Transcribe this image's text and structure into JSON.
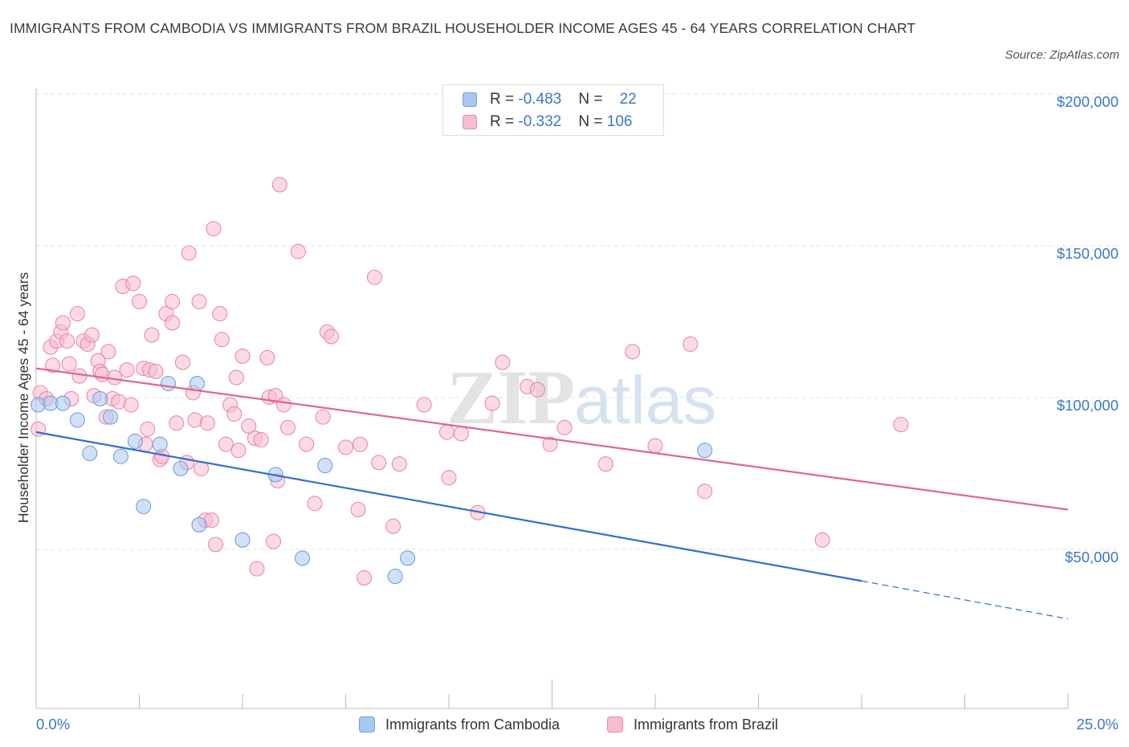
{
  "title": "IMMIGRANTS FROM CAMBODIA VS IMMIGRANTS FROM BRAZIL HOUSEHOLDER INCOME AGES 45 - 64 YEARS CORRELATION CHART",
  "source": "Source: ZipAtlas.com",
  "watermark": {
    "zip": "ZIP",
    "atlas": "atlas"
  },
  "legend": {
    "rows": [
      {
        "r_label": "R = ",
        "r_value": "-0.483",
        "n_label": "N = ",
        "n_value": "22",
        "color": "#a9c8f0",
        "border": "#6fa0dd"
      },
      {
        "r_label": "R = ",
        "r_value": "-0.332",
        "n_label": "N = ",
        "n_value": "106",
        "color": "#f7bcd0",
        "border": "#e98aa9"
      }
    ]
  },
  "bottom_legend": {
    "items": [
      {
        "label": "Immigrants from Cambodia",
        "color": "#a9c8f0",
        "border": "#6fa0dd"
      },
      {
        "label": "Immigrants from Brazil",
        "color": "#f7bcd0",
        "border": "#e98aa9"
      }
    ]
  },
  "chart_data": {
    "type": "scatter",
    "title": "IMMIGRANTS FROM CAMBODIA VS IMMIGRANTS FROM BRAZIL HOUSEHOLDER INCOME AGES 45 - 64 YEARS CORRELATION CHART",
    "xlabel": "",
    "ylabel": "Householder Income Ages 45 - 64 years",
    "xlim": [
      0,
      25
    ],
    "ylim": [
      0,
      200000
    ],
    "x_tick_labels": [
      "0.0%",
      "25.0%"
    ],
    "y_ticks": [
      50000,
      100000,
      150000,
      200000
    ],
    "y_tick_labels": [
      "$50,000",
      "$100,000",
      "$150,000",
      "$200,000"
    ],
    "grid": true,
    "legend_position": "top-center",
    "series": [
      {
        "name": "Immigrants from Cambodia",
        "color": "#a9c8f0",
        "edge_color": "#6fa0dd",
        "line_color": "#2f6fd1",
        "trend": {
          "x0": 0,
          "y0": 91000,
          "x1": 20,
          "y1": 42000,
          "dash_to_x": 25,
          "dash_to_y": 29500
        },
        "points": [
          [
            0.05,
            100000
          ],
          [
            0.35,
            100500
          ],
          [
            0.65,
            100500
          ],
          [
            1.0,
            95000
          ],
          [
            1.3,
            84000
          ],
          [
            1.55,
            102000
          ],
          [
            1.8,
            96000
          ],
          [
            2.05,
            83000
          ],
          [
            2.4,
            88000
          ],
          [
            2.6,
            66500
          ],
          [
            3.0,
            87000
          ],
          [
            3.2,
            107000
          ],
          [
            3.5,
            79000
          ],
          [
            3.9,
            107000
          ],
          [
            3.95,
            60500
          ],
          [
            5.0,
            55500
          ],
          [
            5.8,
            77000
          ],
          [
            6.45,
            49500
          ],
          [
            7.0,
            80000
          ],
          [
            8.7,
            43500
          ],
          [
            9.0,
            49500
          ],
          [
            16.2,
            85000
          ]
        ]
      },
      {
        "name": "Immigrants from Brazil",
        "color": "#f7bcd0",
        "edge_color": "#e98aa9",
        "line_color": "#e0668e",
        "trend": {
          "x0": 0,
          "y0": 112000,
          "x1": 25,
          "y1": 65500
        },
        "points": [
          [
            0.05,
            92000
          ],
          [
            0.1,
            104000
          ],
          [
            0.25,
            102000
          ],
          [
            0.35,
            119000
          ],
          [
            0.4,
            113000
          ],
          [
            0.5,
            121000
          ],
          [
            0.6,
            124000
          ],
          [
            0.65,
            127000
          ],
          [
            0.75,
            121000
          ],
          [
            0.8,
            113500
          ],
          [
            0.85,
            102000
          ],
          [
            1.0,
            130000
          ],
          [
            1.05,
            109500
          ],
          [
            1.15,
            121000
          ],
          [
            1.25,
            120000
          ],
          [
            1.35,
            123000
          ],
          [
            1.4,
            103000
          ],
          [
            1.5,
            114500
          ],
          [
            1.55,
            111000
          ],
          [
            1.6,
            110000
          ],
          [
            1.7,
            96000
          ],
          [
            1.75,
            117500
          ],
          [
            1.85,
            102000
          ],
          [
            1.9,
            109000
          ],
          [
            2.0,
            101000
          ],
          [
            2.1,
            139000
          ],
          [
            2.2,
            111500
          ],
          [
            2.3,
            100000
          ],
          [
            2.35,
            140000
          ],
          [
            2.5,
            134000
          ],
          [
            2.6,
            112000
          ],
          [
            2.65,
            87000
          ],
          [
            2.7,
            92000
          ],
          [
            2.75,
            111500
          ],
          [
            2.8,
            123000
          ],
          [
            2.9,
            111000
          ],
          [
            3.0,
            82000
          ],
          [
            3.05,
            83000
          ],
          [
            3.15,
            130000
          ],
          [
            3.3,
            127000
          ],
          [
            3.3,
            134000
          ],
          [
            3.4,
            94000
          ],
          [
            3.55,
            114000
          ],
          [
            3.65,
            81000
          ],
          [
            3.7,
            150000
          ],
          [
            3.8,
            104000
          ],
          [
            3.85,
            95000
          ],
          [
            3.95,
            134000
          ],
          [
            4.0,
            79000
          ],
          [
            4.1,
            62000
          ],
          [
            4.15,
            94000
          ],
          [
            4.25,
            62000
          ],
          [
            4.3,
            158000
          ],
          [
            4.35,
            54000
          ],
          [
            4.45,
            130000
          ],
          [
            4.5,
            121500
          ],
          [
            4.6,
            87000
          ],
          [
            4.7,
            100000
          ],
          [
            4.8,
            97000
          ],
          [
            4.85,
            109000
          ],
          [
            4.9,
            85000
          ],
          [
            5.0,
            116000
          ],
          [
            5.15,
            93000
          ],
          [
            5.3,
            89000
          ],
          [
            5.35,
            46000
          ],
          [
            5.45,
            88500
          ],
          [
            5.6,
            115500
          ],
          [
            5.65,
            102500
          ],
          [
            5.75,
            55000
          ],
          [
            5.8,
            103000
          ],
          [
            5.85,
            75000
          ],
          [
            5.9,
            172500
          ],
          [
            6.0,
            100000
          ],
          [
            6.1,
            92500
          ],
          [
            6.35,
            150500
          ],
          [
            6.55,
            87000
          ],
          [
            6.75,
            67500
          ],
          [
            6.95,
            96000
          ],
          [
            7.05,
            124000
          ],
          [
            7.15,
            122500
          ],
          [
            7.5,
            86000
          ],
          [
            7.8,
            65500
          ],
          [
            7.85,
            87000
          ],
          [
            7.95,
            43000
          ],
          [
            8.2,
            142000
          ],
          [
            8.3,
            81000
          ],
          [
            8.65,
            60000
          ],
          [
            8.8,
            80500
          ],
          [
            9.4,
            100000
          ],
          [
            9.95,
            91000
          ],
          [
            10.0,
            76000
          ],
          [
            10.3,
            90500
          ],
          [
            10.7,
            64500
          ],
          [
            11.05,
            100500
          ],
          [
            11.3,
            114000
          ],
          [
            11.9,
            106000
          ],
          [
            12.15,
            105000
          ],
          [
            12.45,
            87000
          ],
          [
            12.8,
            92500
          ],
          [
            13.8,
            80500
          ],
          [
            14.45,
            117500
          ],
          [
            15.0,
            86500
          ],
          [
            15.85,
            120000
          ],
          [
            16.2,
            71500
          ],
          [
            19.05,
            55500
          ],
          [
            20.95,
            93500
          ]
        ]
      }
    ]
  }
}
